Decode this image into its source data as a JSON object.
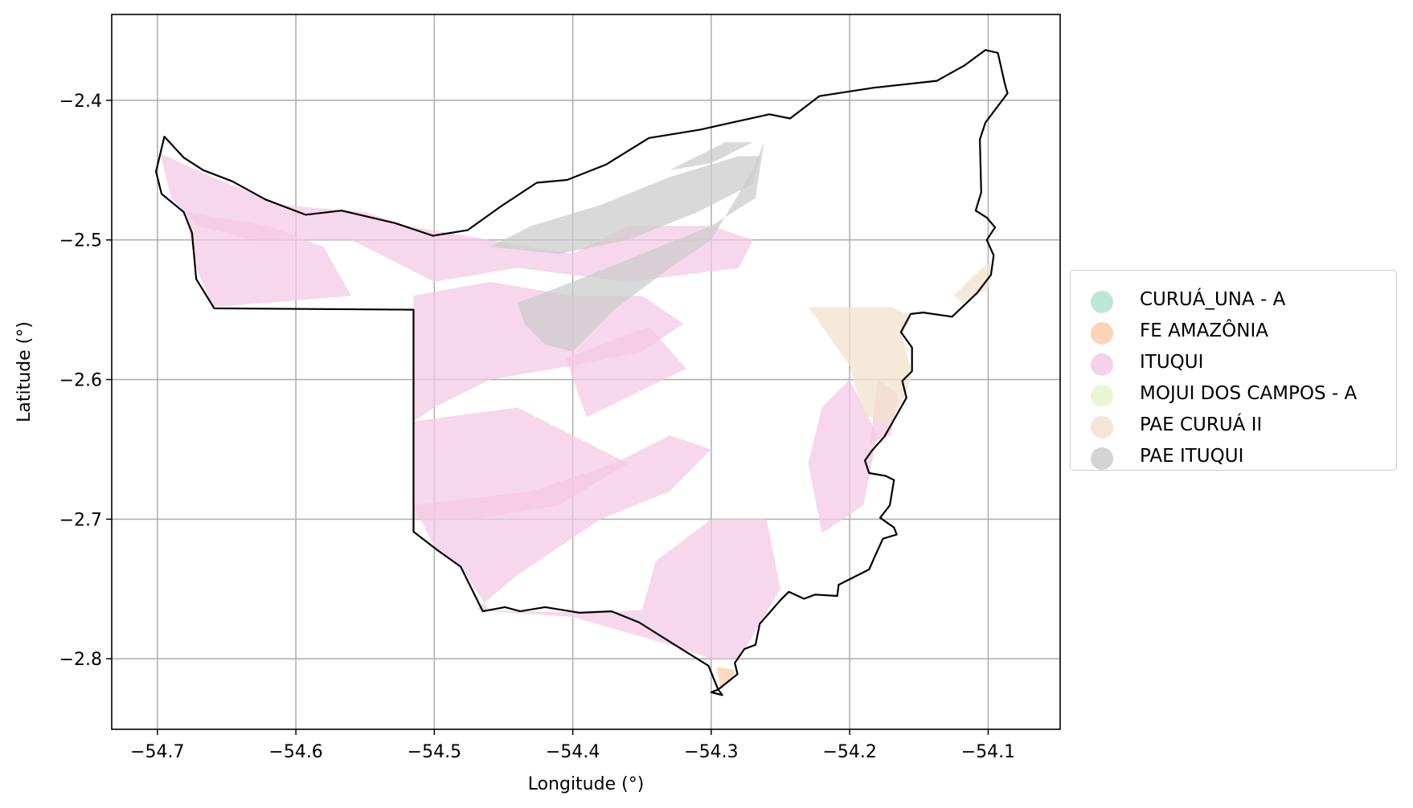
{
  "chart_data": {
    "type": "map",
    "xlabel": "Longitude (°)",
    "ylabel": "Latitude (°)",
    "xlim": [
      -54.733,
      -54.048
    ],
    "ylim": [
      -2.8505,
      -2.3385
    ],
    "grid": true,
    "x_ticks": [
      -54.7,
      -54.6,
      -54.5,
      -54.4,
      -54.3,
      -54.2,
      -54.1
    ],
    "x_tick_labels": [
      "−54.7",
      "−54.6",
      "−54.5",
      "−54.4",
      "−54.3",
      "−54.2",
      "−54.1"
    ],
    "y_ticks": [
      -2.4,
      -2.5,
      -2.6,
      -2.7,
      -2.8
    ],
    "y_tick_labels": [
      "−2.4",
      "−2.5",
      "−2.6",
      "−2.7",
      "−2.8"
    ],
    "legend_position": "center-right outside",
    "legend": [
      {
        "label": "CURUÁ_UNA - A",
        "color": "#b3e2cd"
      },
      {
        "label": "FE AMAZÔNIA",
        "color": "#fdcdac"
      },
      {
        "label": "ITUQUI",
        "color": "#f4cae4"
      },
      {
        "label": "MOJUI DOS CAMPOS - A",
        "color": "#e6f5c9"
      },
      {
        "label": "PAE CURUÁ II",
        "color": "#f1e2cc"
      },
      {
        "label": "PAE ITUQUI",
        "color": "#cccccc"
      }
    ],
    "boundary": [
      [
        -54.701,
        -2.451
      ],
      [
        -54.695,
        -2.426
      ],
      [
        -54.681,
        -2.441
      ],
      [
        -54.667,
        -2.45
      ],
      [
        -54.646,
        -2.458
      ],
      [
        -54.622,
        -2.471
      ],
      [
        -54.593,
        -2.482
      ],
      [
        -54.567,
        -2.479
      ],
      [
        -54.528,
        -2.488
      ],
      [
        -54.501,
        -2.497
      ],
      [
        -54.476,
        -2.493
      ],
      [
        -54.452,
        -2.476
      ],
      [
        -54.426,
        -2.459
      ],
      [
        -54.404,
        -2.457
      ],
      [
        -54.376,
        -2.446
      ],
      [
        -54.345,
        -2.427
      ],
      [
        -54.308,
        -2.421
      ],
      [
        -54.258,
        -2.41
      ],
      [
        -54.243,
        -2.413
      ],
      [
        -54.222,
        -2.397
      ],
      [
        -54.183,
        -2.391
      ],
      [
        -54.137,
        -2.386
      ],
      [
        -54.117,
        -2.375
      ],
      [
        -54.102,
        -2.364
      ],
      [
        -54.093,
        -2.366
      ],
      [
        -54.088,
        -2.388
      ],
      [
        -54.086,
        -2.395
      ],
      [
        -54.102,
        -2.416
      ],
      [
        -54.106,
        -2.428
      ],
      [
        -54.105,
        -2.466
      ],
      [
        -54.109,
        -2.479
      ],
      [
        -54.101,
        -2.484
      ],
      [
        -54.095,
        -2.491
      ],
      [
        -54.101,
        -2.5
      ],
      [
        -54.096,
        -2.511
      ],
      [
        -54.098,
        -2.525
      ],
      [
        -54.108,
        -2.538
      ],
      [
        -54.126,
        -2.555
      ],
      [
        -54.147,
        -2.552
      ],
      [
        -54.156,
        -2.553
      ],
      [
        -54.163,
        -2.566
      ],
      [
        -54.155,
        -2.577
      ],
      [
        -54.155,
        -2.594
      ],
      [
        -54.162,
        -2.601
      ],
      [
        -54.159,
        -2.613
      ],
      [
        -54.175,
        -2.641
      ],
      [
        -54.184,
        -2.651
      ],
      [
        -54.189,
        -2.658
      ],
      [
        -54.186,
        -2.667
      ],
      [
        -54.174,
        -2.669
      ],
      [
        -54.168,
        -2.672
      ],
      [
        -54.171,
        -2.69
      ],
      [
        -54.178,
        -2.699
      ],
      [
        -54.168,
        -2.706
      ],
      [
        -54.166,
        -2.711
      ],
      [
        -54.176,
        -2.714
      ],
      [
        -54.182,
        -2.727
      ],
      [
        -54.186,
        -2.736
      ],
      [
        -54.208,
        -2.747
      ],
      [
        -54.209,
        -2.755
      ],
      [
        -54.225,
        -2.754
      ],
      [
        -54.233,
        -2.757
      ],
      [
        -54.244,
        -2.752
      ],
      [
        -54.25,
        -2.758
      ],
      [
        -54.265,
        -2.775
      ],
      [
        -54.268,
        -2.79
      ],
      [
        -54.276,
        -2.793
      ],
      [
        -54.283,
        -2.803
      ],
      [
        -54.281,
        -2.811
      ],
      [
        -54.295,
        -2.822
      ],
      [
        -54.3,
        -2.824
      ],
      [
        -54.292,
        -2.826
      ],
      [
        -54.295,
        -2.822
      ],
      [
        -54.302,
        -2.805
      ],
      [
        -54.328,
        -2.789
      ],
      [
        -54.352,
        -2.774
      ],
      [
        -54.372,
        -2.766
      ],
      [
        -54.395,
        -2.767
      ],
      [
        -54.42,
        -2.763
      ],
      [
        -54.438,
        -2.766
      ],
      [
        -54.449,
        -2.763
      ],
      [
        -54.465,
        -2.766
      ],
      [
        -54.481,
        -2.734
      ],
      [
        -54.498,
        -2.722
      ],
      [
        -54.515,
        -2.709
      ],
      [
        -54.515,
        -2.55
      ],
      [
        -54.659,
        -2.549
      ],
      [
        -54.672,
        -2.528
      ],
      [
        -54.675,
        -2.495
      ],
      [
        -54.681,
        -2.48
      ],
      [
        -54.697,
        -2.467
      ],
      [
        -54.701,
        -2.451
      ]
    ],
    "areas": [
      {
        "name": "ITUQUI",
        "polygons": [
          [
            [
              -54.698,
              -2.438
            ],
            [
              -54.66,
              -2.455
            ],
            [
              -54.61,
              -2.475
            ],
            [
              -54.55,
              -2.48
            ],
            [
              -54.52,
              -2.49
            ],
            [
              -54.46,
              -2.5
            ],
            [
              -54.4,
              -2.51
            ],
            [
              -54.36,
              -2.49
            ],
            [
              -54.3,
              -2.49
            ],
            [
              -54.27,
              -2.5
            ],
            [
              -54.28,
              -2.52
            ],
            [
              -54.36,
              -2.53
            ],
            [
              -54.44,
              -2.52
            ],
            [
              -54.5,
              -2.53
            ],
            [
              -54.56,
              -2.5
            ],
            [
              -54.63,
              -2.5
            ],
            [
              -54.67,
              -2.49
            ],
            [
              -54.69,
              -2.47
            ]
          ],
          [
            [
              -54.68,
              -2.48
            ],
            [
              -54.62,
              -2.49
            ],
            [
              -54.58,
              -2.505
            ],
            [
              -54.56,
              -2.54
            ],
            [
              -54.62,
              -2.545
            ],
            [
              -54.66,
              -2.548
            ],
            [
              -54.672,
              -2.52
            ]
          ],
          [
            [
              -54.515,
              -2.54
            ],
            [
              -54.46,
              -2.53
            ],
            [
              -54.4,
              -2.54
            ],
            [
              -54.35,
              -2.54
            ],
            [
              -54.32,
              -2.56
            ],
            [
              -54.35,
              -2.58
            ],
            [
              -54.4,
              -2.59
            ],
            [
              -54.46,
              -2.6
            ],
            [
              -54.5,
              -2.62
            ],
            [
              -54.515,
              -2.63
            ]
          ],
          [
            [
              -54.405,
              -2.585
            ],
            [
              -54.345,
              -2.562
            ],
            [
              -54.318,
              -2.592
            ],
            [
              -54.39,
              -2.627
            ]
          ],
          [
            [
              -54.515,
              -2.63
            ],
            [
              -54.44,
              -2.62
            ],
            [
              -54.4,
              -2.64
            ],
            [
              -54.36,
              -2.66
            ],
            [
              -54.41,
              -2.69
            ],
            [
              -54.47,
              -2.7
            ],
            [
              -54.515,
              -2.7
            ]
          ],
          [
            [
              -54.515,
              -2.69
            ],
            [
              -54.43,
              -2.68
            ],
            [
              -54.37,
              -2.66
            ],
            [
              -54.33,
              -2.64
            ],
            [
              -54.3,
              -2.65
            ],
            [
              -54.33,
              -2.68
            ],
            [
              -54.38,
              -2.7
            ],
            [
              -54.44,
              -2.74
            ],
            [
              -54.47,
              -2.765
            ],
            [
              -54.43,
              -2.766
            ],
            [
              -54.38,
              -2.767
            ],
            [
              -54.35,
              -2.765
            ],
            [
              -54.34,
              -2.73
            ],
            [
              -54.3,
              -2.7
            ],
            [
              -54.26,
              -2.7
            ],
            [
              -54.25,
              -2.75
            ],
            [
              -54.265,
              -2.775
            ],
            [
              -54.28,
              -2.8
            ],
            [
              -54.3,
              -2.8
            ],
            [
              -54.33,
              -2.79
            ],
            [
              -54.4,
              -2.77
            ],
            [
              -54.46,
              -2.766
            ],
            [
              -54.48,
              -2.735
            ],
            [
              -54.5,
              -2.72
            ]
          ],
          [
            [
              -54.2,
              -2.6
            ],
            [
              -54.18,
              -2.64
            ],
            [
              -54.19,
              -2.69
            ],
            [
              -54.22,
              -2.71
            ],
            [
              -54.23,
              -2.66
            ],
            [
              -54.22,
              -2.62
            ]
          ],
          [
            [
              -54.18,
              -2.6
            ],
            [
              -54.165,
              -2.61
            ],
            [
              -54.17,
              -2.64
            ],
            [
              -54.185,
              -2.645
            ]
          ]
        ]
      },
      {
        "name": "PAE ITUQUI",
        "polygons": [
          [
            [
              -54.46,
              -2.505
            ],
            [
              -54.43,
              -2.49
            ],
            [
              -54.38,
              -2.475
            ],
            [
              -54.33,
              -2.455
            ],
            [
              -54.28,
              -2.44
            ],
            [
              -54.265,
              -2.44
            ],
            [
              -54.27,
              -2.46
            ],
            [
              -54.31,
              -2.48
            ],
            [
              -54.36,
              -2.5
            ],
            [
              -54.41,
              -2.51
            ]
          ],
          [
            [
              -54.44,
              -2.545
            ],
            [
              -54.4,
              -2.53
            ],
            [
              -54.35,
              -2.51
            ],
            [
              -54.3,
              -2.49
            ],
            [
              -54.268,
              -2.47
            ],
            [
              -54.262,
              -2.43
            ],
            [
              -54.27,
              -2.45
            ],
            [
              -54.3,
              -2.5
            ],
            [
              -54.33,
              -2.52
            ],
            [
              -54.37,
              -2.55
            ],
            [
              -54.4,
              -2.58
            ],
            [
              -54.42,
              -2.575
            ],
            [
              -54.435,
              -2.56
            ]
          ],
          [
            [
              -54.33,
              -2.45
            ],
            [
              -54.3,
              -2.445
            ],
            [
              -54.27,
              -2.43
            ],
            [
              -54.29,
              -2.43
            ]
          ]
        ]
      },
      {
        "name": "PAE CURUÁ II",
        "polygons": [
          [
            [
              -54.23,
              -2.548
            ],
            [
              -54.17,
              -2.548
            ],
            [
              -54.155,
              -2.555
            ],
            [
              -54.162,
              -2.568
            ],
            [
              -54.155,
              -2.596
            ],
            [
              -54.16,
              -2.612
            ],
            [
              -54.172,
              -2.632
            ],
            [
              -54.19,
              -2.625
            ],
            [
              -54.2,
              -2.59
            ]
          ],
          [
            [
              -54.098,
              -2.515
            ],
            [
              -54.1,
              -2.535
            ],
            [
              -54.118,
              -2.545
            ],
            [
              -54.125,
              -2.54
            ],
            [
              -54.11,
              -2.525
            ]
          ]
        ]
      },
      {
        "name": "FE AMAZÔNIA",
        "polygons": [
          [
            [
              -54.296,
              -2.806
            ],
            [
              -54.283,
              -2.808
            ],
            [
              -54.285,
              -2.815
            ],
            [
              -54.293,
              -2.822
            ]
          ]
        ]
      }
    ]
  }
}
